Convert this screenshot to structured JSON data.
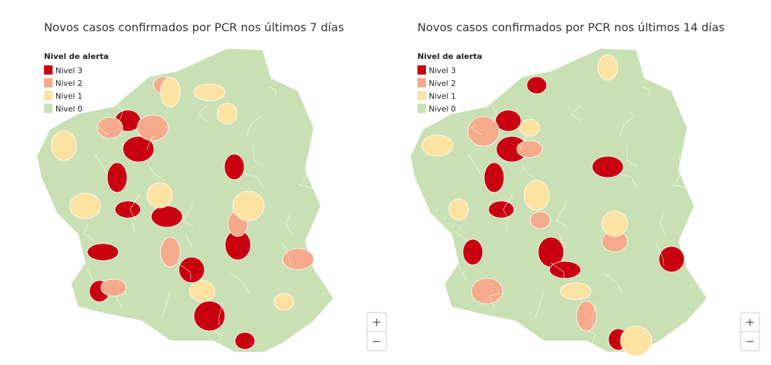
{
  "maps": [
    {
      "title": "Novos casos confirmados por PCR nos últimos 7 días",
      "legend": {
        "title": "Nivel de alerta",
        "items": [
          {
            "label": "Nivel 3",
            "color": "#c8000f"
          },
          {
            "label": "Nivel 2",
            "color": "#f5ab8b"
          },
          {
            "label": "Nivel 1",
            "color": "#fde3a3"
          },
          {
            "label": "Nivel 0",
            "color": "#c9e0b5"
          }
        ]
      },
      "zoom_in": "+",
      "zoom_out": "−"
    },
    {
      "title": "Novos casos confirmados por PCR nos últimos 14 días",
      "legend": {
        "title": "Nivel de alerta",
        "items": [
          {
            "label": "Nivel 3",
            "color": "#c8000f"
          },
          {
            "label": "Nivel 2",
            "color": "#f5ab8b"
          },
          {
            "label": "Nivel 1",
            "color": "#fde3a3"
          },
          {
            "label": "Nivel 0",
            "color": "#c9e0b5"
          }
        ]
      },
      "zoom_in": "+",
      "zoom_out": "−"
    }
  ]
}
